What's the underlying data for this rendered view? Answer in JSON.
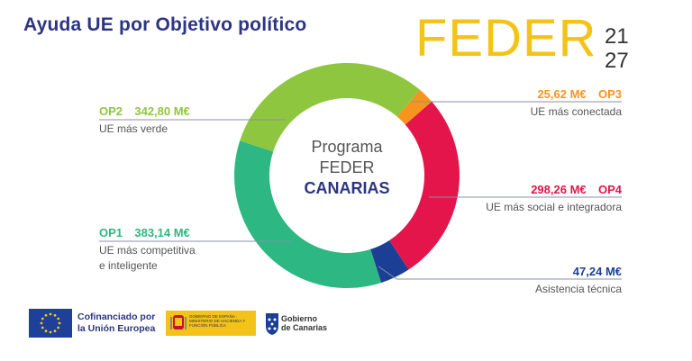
{
  "title": "Ayuda UE por Objetivo político",
  "brand": {
    "word": "FEDER",
    "year_top": "21",
    "year_bottom": "27"
  },
  "center": {
    "line1": "Programa",
    "line2": "FEDER",
    "line3": "CANARIAS"
  },
  "labels": {
    "op2": {
      "code": "OP2",
      "amount": "342,80 M€",
      "desc": "UE más verde"
    },
    "op3": {
      "code": "OP3",
      "amount": "25,62 M€",
      "desc": "UE más conectada"
    },
    "op4": {
      "code": "OP4",
      "amount": "298,26 M€",
      "desc": "UE más social e integradora"
    },
    "op1": {
      "code": "OP1",
      "amount": "383,14 M€",
      "desc1": "UE más competitiva",
      "desc2": "e inteligente"
    },
    "at": {
      "amount": "47,24 M€",
      "desc": "Asistencia técnica"
    }
  },
  "footer": {
    "eu_line1": "Cofinanciado por",
    "eu_line2": "la Unión Europea",
    "es_text": "GOBIERNO DE ESPAÑA · MINISTERIO DE HACIENDA Y FUNCIÓN PÚBLICA",
    "canarias_line1": "Gobierno",
    "canarias_line2": "de Canarias"
  },
  "chart_data": {
    "type": "pie",
    "variant": "donut",
    "unit": "M€",
    "slices": [
      {
        "label": "OP2",
        "value": 342.8,
        "color": "#8fc63f"
      },
      {
        "label": "OP3",
        "value": 25.62,
        "color": "#f7941d"
      },
      {
        "label": "OP4",
        "value": 298.26,
        "color": "#e4154b"
      },
      {
        "label": "Asistencia técnica",
        "value": 47.24,
        "color": "#1b3f94"
      },
      {
        "label": "OP1",
        "value": 383.14,
        "color": "#2db783"
      }
    ],
    "label_colors": {
      "OP2": "#8fc63f",
      "OP3": "#f7941d",
      "OP4": "#e4154b",
      "AT": "#1b3f94",
      "OP1": "#2db783"
    }
  }
}
